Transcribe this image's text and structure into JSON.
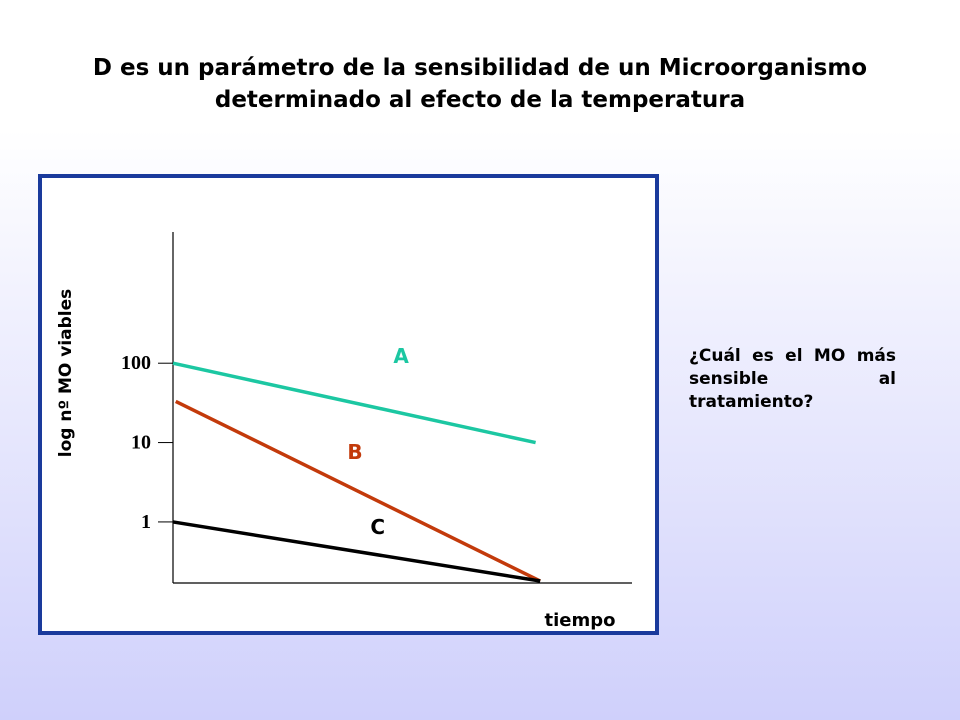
{
  "header": {
    "title_line1": "D es un parámetro de la sensibilidad de un Microorganismo",
    "title_line2": "determinado al efecto de la temperatura"
  },
  "sidebar": {
    "question": "¿Cuál es el MO más sensible al tratamiento?"
  },
  "chart_data": {
    "type": "line",
    "title": "",
    "xlabel": "tiempo",
    "ylabel": "log nº MO viables",
    "y_scale": "log",
    "y_ticks": [
      "100",
      "10",
      "1"
    ],
    "y_tick_values": [
      100,
      10,
      1
    ],
    "xlim": [
      0,
      1
    ],
    "ylim": [
      0.17,
      4500
    ],
    "grid": false,
    "series": [
      {
        "name": "A",
        "color": "#1cc7a2",
        "x": [
          0,
          0.79
        ],
        "y": [
          100,
          10
        ]
      },
      {
        "name": "B",
        "color": "#c33a0b",
        "x": [
          0.006,
          0.8
        ],
        "y": [
          33,
          0.18
        ]
      },
      {
        "name": "C",
        "color": "#000000",
        "x": [
          0,
          0.8
        ],
        "y": [
          1,
          0.18
        ]
      }
    ]
  }
}
